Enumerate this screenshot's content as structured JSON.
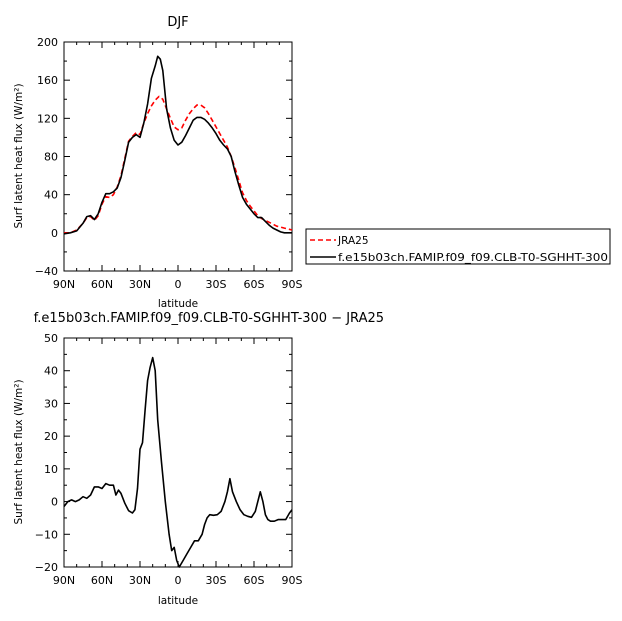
{
  "chart_data": [
    {
      "type": "line",
      "title": "DJF",
      "xlabel": "latitude",
      "ylabel": "Surf latent heat flux (W/m²)",
      "xlim": [
        -90,
        90
      ],
      "ylim": [
        -40,
        200
      ],
      "x_ticks": [
        -90,
        -60,
        -30,
        0,
        30,
        60,
        90
      ],
      "x_tick_labels": [
        "90N",
        "60N",
        "30N",
        "0",
        "30S",
        "60S",
        "90S"
      ],
      "y_ticks": [
        -40,
        0,
        40,
        80,
        120,
        160,
        200
      ],
      "y_tick_labels": [
        "−40",
        "0",
        "40",
        "80",
        "120",
        "160",
        "200"
      ],
      "legend_position": "right",
      "series": [
        {
          "name": "JRA25",
          "color": "#ff0000",
          "style": "dashed",
          "points": [
            [
              -90,
              0
            ],
            [
              -85,
              0
            ],
            [
              -80,
              3
            ],
            [
              -75,
              10
            ],
            [
              -72,
              16
            ],
            [
              -69,
              17
            ],
            [
              -66,
              13
            ],
            [
              -63,
              18
            ],
            [
              -60,
              30
            ],
            [
              -57,
              38
            ],
            [
              -54,
              37
            ],
            [
              -51,
              40
            ],
            [
              -48,
              48
            ],
            [
              -45,
              60
            ],
            [
              -42,
              78
            ],
            [
              -39,
              96
            ],
            [
              -36,
              101
            ],
            [
              -33,
              105
            ],
            [
              -30,
              103
            ],
            [
              -27,
              115
            ],
            [
              -24,
              125
            ],
            [
              -21,
              133
            ],
            [
              -18,
              139
            ],
            [
              -15,
              143
            ],
            [
              -12,
              140
            ],
            [
              -9,
              130
            ],
            [
              -6,
              120
            ],
            [
              -3,
              111
            ],
            [
              0,
              108
            ],
            [
              3,
              110
            ],
            [
              6,
              118
            ],
            [
              9,
              125
            ],
            [
              12,
              130
            ],
            [
              15,
              134
            ],
            [
              18,
              134
            ],
            [
              21,
              131
            ],
            [
              24,
              125
            ],
            [
              27,
              118
            ],
            [
              30,
              111
            ],
            [
              33,
              104
            ],
            [
              36,
              97
            ],
            [
              39,
              90
            ],
            [
              42,
              80
            ],
            [
              45,
              68
            ],
            [
              48,
              55
            ],
            [
              51,
              42
            ],
            [
              54,
              34
            ],
            [
              57,
              28
            ],
            [
              60,
              23
            ],
            [
              63,
              18
            ],
            [
              66,
              15
            ],
            [
              69,
              13
            ],
            [
              72,
              11
            ],
            [
              75,
              9
            ],
            [
              78,
              7
            ],
            [
              81,
              6
            ],
            [
              84,
              5
            ],
            [
              87,
              4
            ],
            [
              90,
              3
            ]
          ]
        },
        {
          "name": "f.e15b03ch.FAMIP.f09_f09.CLB-T0-SGHHT-300",
          "color": "#000000",
          "style": "solid",
          "points": [
            [
              -90,
              -1
            ],
            [
              -85,
              0
            ],
            [
              -80,
              2
            ],
            [
              -75,
              10
            ],
            [
              -72,
              17
            ],
            [
              -69,
              18
            ],
            [
              -66,
              14
            ],
            [
              -63,
              20
            ],
            [
              -60,
              32
            ],
            [
              -57,
              41
            ],
            [
              -54,
              41
            ],
            [
              -51,
              43
            ],
            [
              -48,
              47
            ],
            [
              -45,
              58
            ],
            [
              -42,
              76
            ],
            [
              -39,
              95
            ],
            [
              -36,
              100
            ],
            [
              -33,
              103
            ],
            [
              -30,
              100
            ],
            [
              -27,
              115
            ],
            [
              -24,
              135
            ],
            [
              -21,
              162
            ],
            [
              -18,
              175
            ],
            [
              -16,
              185
            ],
            [
              -14,
              182
            ],
            [
              -12,
              170
            ],
            [
              -9,
              130
            ],
            [
              -6,
              110
            ],
            [
              -3,
              97
            ],
            [
              0,
              92
            ],
            [
              3,
              95
            ],
            [
              6,
              102
            ],
            [
              9,
              110
            ],
            [
              12,
              118
            ],
            [
              15,
              121
            ],
            [
              18,
              121
            ],
            [
              21,
              119
            ],
            [
              24,
              115
            ],
            [
              27,
              110
            ],
            [
              30,
              104
            ],
            [
              33,
              97
            ],
            [
              36,
              92
            ],
            [
              39,
              88
            ],
            [
              42,
              80
            ],
            [
              45,
              64
            ],
            [
              48,
              50
            ],
            [
              51,
              37
            ],
            [
              54,
              30
            ],
            [
              57,
              25
            ],
            [
              60,
              20
            ],
            [
              63,
              16
            ],
            [
              66,
              16
            ],
            [
              69,
              12
            ],
            [
              72,
              8
            ],
            [
              75,
              5
            ],
            [
              78,
              3
            ],
            [
              81,
              1
            ],
            [
              84,
              0
            ],
            [
              87,
              0
            ],
            [
              90,
              0
            ]
          ]
        }
      ]
    },
    {
      "type": "line",
      "title": "f.e15b03ch.FAMIP.f09_f09.CLB-T0-SGHHT-300 − JRA25",
      "xlabel": "latitude",
      "ylabel": "Surf latent heat flux (W/m²)",
      "xlim": [
        -90,
        90
      ],
      "ylim": [
        -20,
        50
      ],
      "x_ticks": [
        -90,
        -60,
        -30,
        0,
        30,
        60,
        90
      ],
      "x_tick_labels": [
        "90N",
        "60N",
        "30N",
        "0",
        "30S",
        "60S",
        "90S"
      ],
      "y_ticks": [
        -20,
        -10,
        0,
        10,
        20,
        30,
        40,
        50
      ],
      "y_tick_labels": [
        "−20",
        "−10",
        "0",
        "10",
        "20",
        "30",
        "40",
        "50"
      ],
      "series": [
        {
          "color": "#000000",
          "style": "solid",
          "points": [
            [
              -90,
              -1.5
            ],
            [
              -87,
              0
            ],
            [
              -84,
              0.5
            ],
            [
              -81,
              0
            ],
            [
              -78,
              0.5
            ],
            [
              -75,
              1.5
            ],
            [
              -72,
              1
            ],
            [
              -69,
              2
            ],
            [
              -66,
              4.5
            ],
            [
              -63,
              4.5
            ],
            [
              -60,
              4
            ],
            [
              -57,
              5.5
            ],
            [
              -54,
              5
            ],
            [
              -51,
              5
            ],
            [
              -49,
              2
            ],
            [
              -47,
              3.5
            ],
            [
              -45,
              2.5
            ],
            [
              -42,
              -0.5
            ],
            [
              -39,
              -2.8
            ],
            [
              -36,
              -3.5
            ],
            [
              -34,
              -2.5
            ],
            [
              -32,
              4
            ],
            [
              -30,
              16
            ],
            [
              -28,
              18
            ],
            [
              -26,
              28
            ],
            [
              -24,
              37
            ],
            [
              -22,
              41
            ],
            [
              -20,
              44
            ],
            [
              -18,
              40
            ],
            [
              -16,
              25
            ],
            [
              -13,
              12
            ],
            [
              -10,
              0
            ],
            [
              -7,
              -10
            ],
            [
              -5,
              -15
            ],
            [
              -3,
              -14
            ],
            [
              -1,
              -18
            ],
            [
              1,
              -20
            ],
            [
              4,
              -18
            ],
            [
              7,
              -16
            ],
            [
              10,
              -14
            ],
            [
              13,
              -12
            ],
            [
              16,
              -12
            ],
            [
              19,
              -10
            ],
            [
              21,
              -7
            ],
            [
              23,
              -5
            ],
            [
              25,
              -4
            ],
            [
              28,
              -4.2
            ],
            [
              31,
              -4
            ],
            [
              34,
              -3
            ],
            [
              37,
              0
            ],
            [
              39,
              3
            ],
            [
              41,
              7
            ],
            [
              43,
              3
            ],
            [
              46,
              0
            ],
            [
              49,
              -2.5
            ],
            [
              52,
              -4
            ],
            [
              55,
              -4.5
            ],
            [
              58,
              -4.8
            ],
            [
              61,
              -3
            ],
            [
              63,
              0
            ],
            [
              65,
              3
            ],
            [
              67,
              0
            ],
            [
              69,
              -4
            ],
            [
              71,
              -5.5
            ],
            [
              73,
              -6
            ],
            [
              76,
              -6
            ],
            [
              79,
              -5.5
            ],
            [
              82,
              -5.5
            ],
            [
              85,
              -5.5
            ],
            [
              88,
              -3.5
            ],
            [
              90,
              -2.5
            ]
          ]
        }
      ]
    }
  ]
}
